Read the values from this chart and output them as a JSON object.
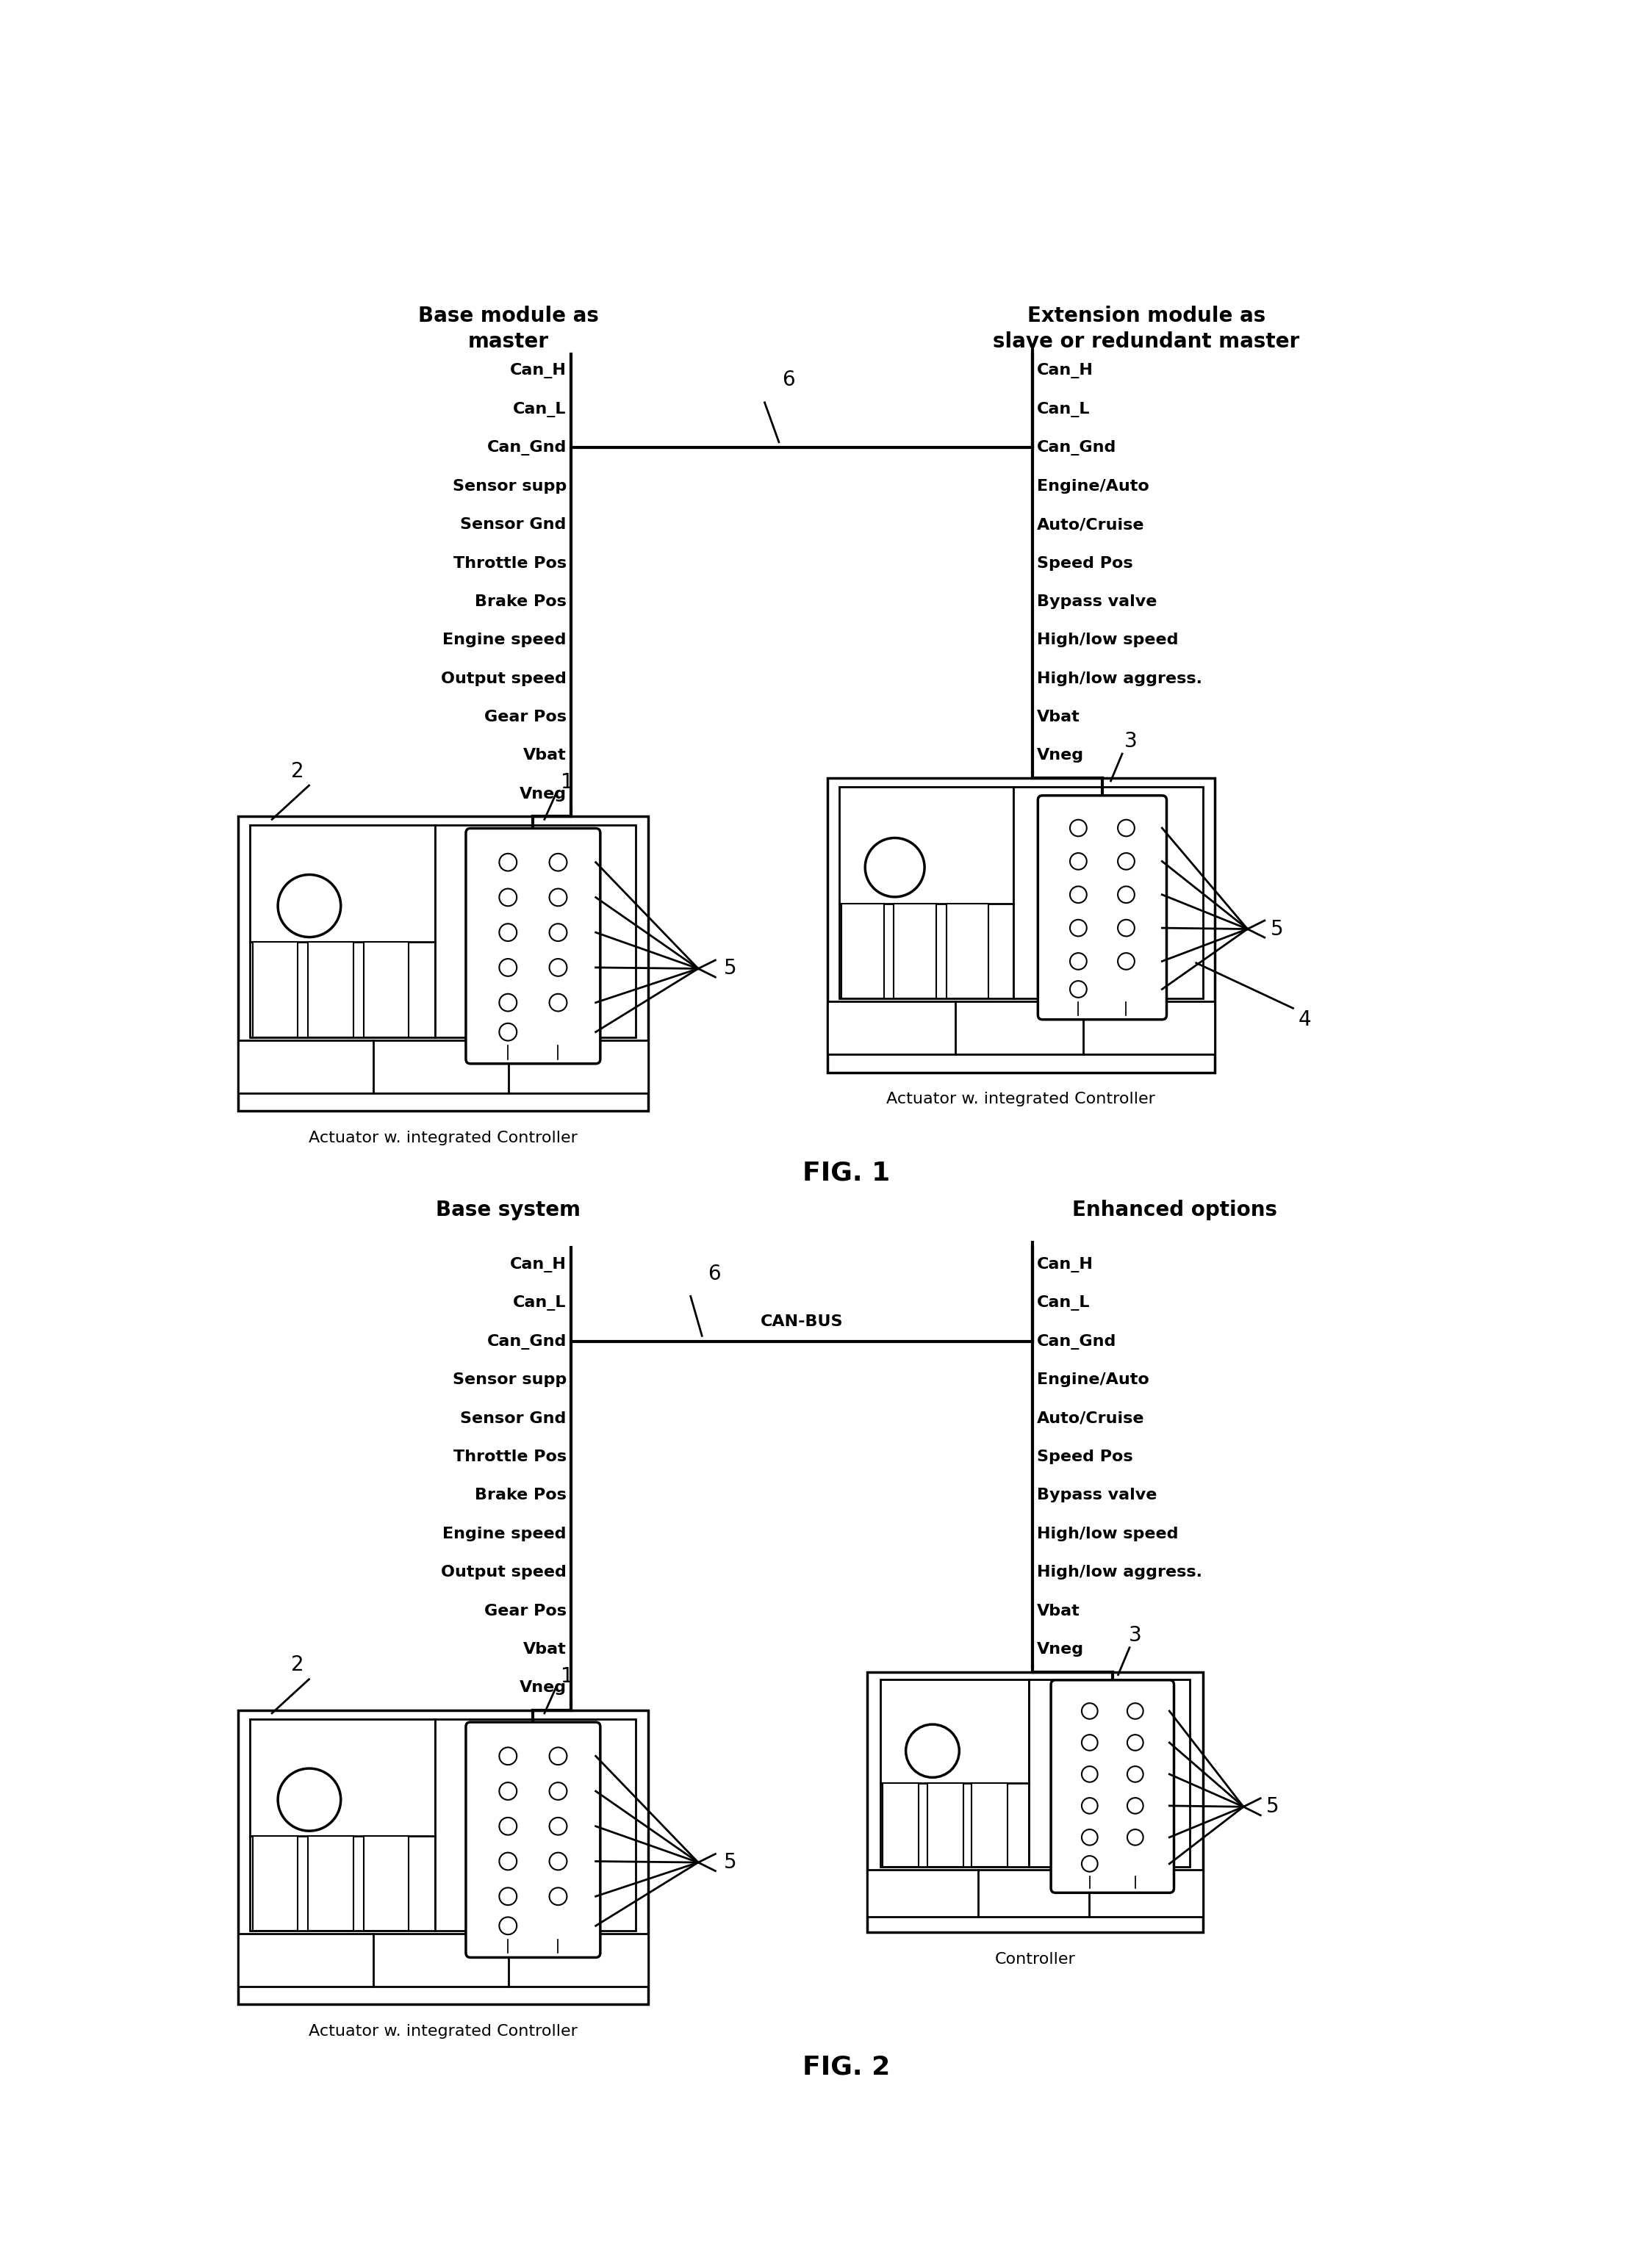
{
  "fig1_title_left": "Base module as\nmaster",
  "fig1_title_right": "Extension module as\nslave or redundant master",
  "fig2_title_left": "Base system",
  "fig2_title_right": "Enhanced options",
  "fig1_label": "FIG. 1",
  "fig2_label": "FIG. 2",
  "left_labels": [
    "Can_H",
    "Can_L",
    "Can_Gnd",
    "Sensor supp",
    "Sensor Gnd",
    "Throttle Pos",
    "Brake Pos",
    "Engine speed",
    "Output speed",
    "Gear Pos",
    "Vbat",
    "Vneg"
  ],
  "right_labels_fig1": [
    "Can_H",
    "Can_L",
    "Can_Gnd",
    "Engine/Auto",
    "Auto/Cruise",
    "Speed Pos",
    "Bypass valve",
    "High/low speed",
    "High/low aggress.",
    "Vbat",
    "Vneg"
  ],
  "right_labels_fig2": [
    "Can_H",
    "Can_L",
    "Can_Gnd",
    "Engine/Auto",
    "Auto/Cruise",
    "Speed Pos",
    "Bypass valve",
    "High/low speed",
    "High/low aggress.",
    "Vbat",
    "Vneg"
  ],
  "actuator_label": "Actuator w. integrated Controller",
  "controller_label": "Controller",
  "can_bus_label": "CAN-BUS",
  "background_color": "#ffffff",
  "line_color": "#000000",
  "label1": "1",
  "label2": "2",
  "label3": "3",
  "label4": "4",
  "label5": "5",
  "label6": "6",
  "title_fontsize": 20,
  "label_fontsize": 16,
  "number_fontsize": 20,
  "fig_label_fontsize": 26
}
